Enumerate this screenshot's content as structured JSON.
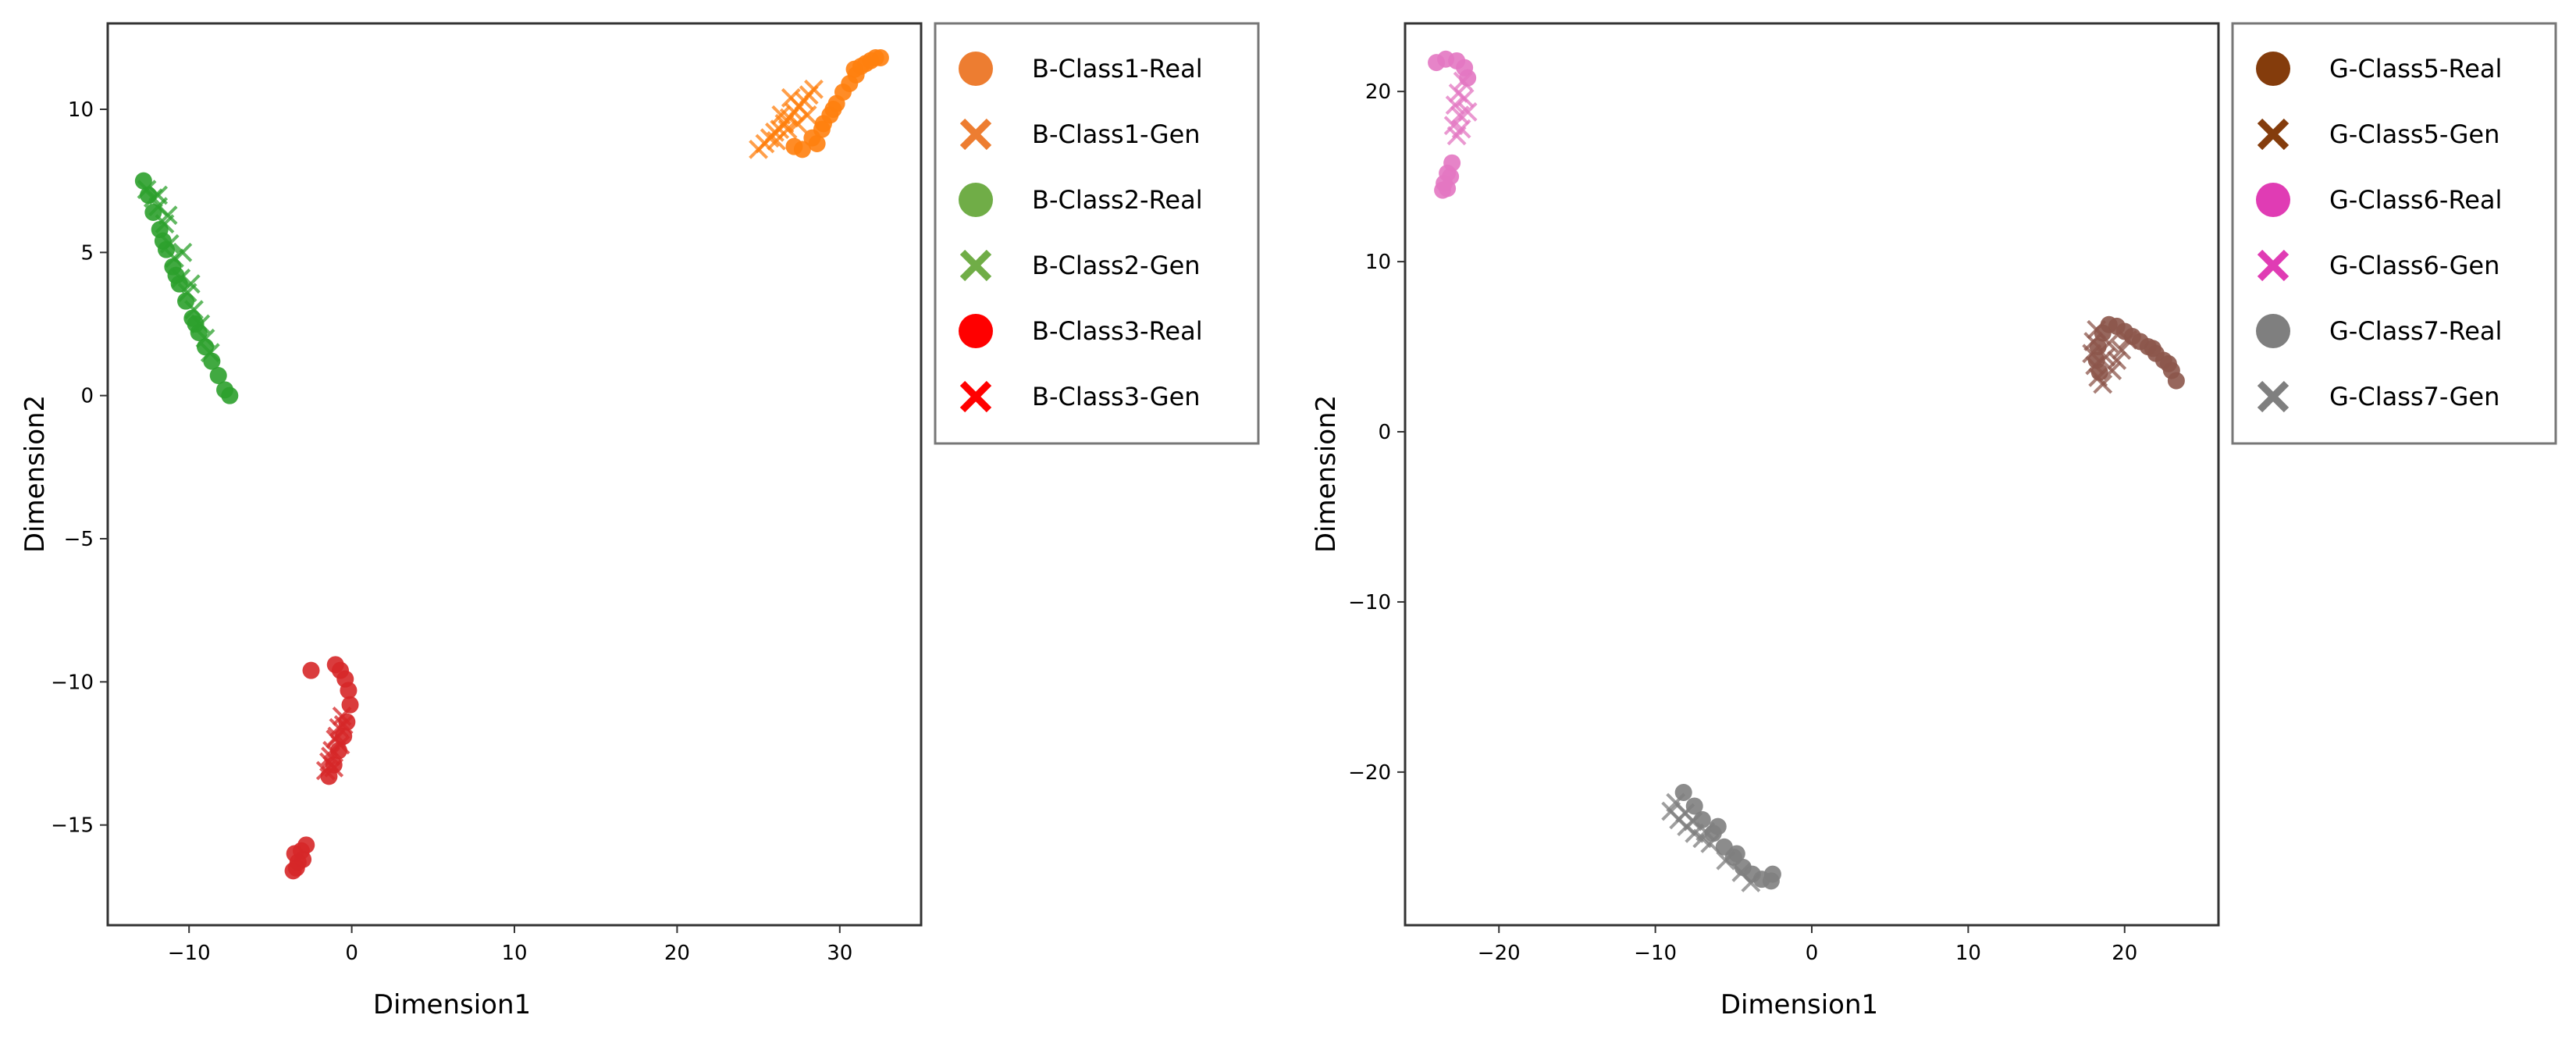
{
  "chart_data": [
    {
      "type": "scatter",
      "xlabel": "Dimension1",
      "ylabel": "Dimension2",
      "xlim": [
        -15,
        35
      ],
      "ylim": [
        -18.5,
        13
      ],
      "xticks": [
        -10,
        0,
        10,
        20,
        30
      ],
      "yticks": [
        10,
        5,
        0,
        -5,
        -10,
        -15
      ],
      "xtick_labels": [
        "−10",
        "0",
        "10",
        "20",
        "30"
      ],
      "ytick_labels": [
        "10",
        "5",
        "0",
        "−5",
        "−10",
        "−15"
      ],
      "legend_position": "outside-right",
      "series": [
        {
          "name": "B-Class1-Real",
          "marker": "circle",
          "color": "#ff7f0e",
          "legend_color": "#ed7d31",
          "points": [
            [
              27.2,
              8.7
            ],
            [
              27.7,
              8.6
            ],
            [
              28.3,
              9.0
            ],
            [
              28.6,
              8.8
            ],
            [
              29.0,
              9.5
            ],
            [
              29.4,
              9.8
            ],
            [
              29.8,
              10.2
            ],
            [
              30.2,
              10.6
            ],
            [
              30.6,
              10.9
            ],
            [
              31.0,
              11.2
            ],
            [
              31.3,
              11.5
            ],
            [
              31.6,
              11.6
            ],
            [
              31.9,
              11.7
            ],
            [
              32.2,
              11.8
            ],
            [
              32.5,
              11.8
            ],
            [
              30.9,
              11.4
            ],
            [
              29.6,
              10.0
            ],
            [
              28.9,
              9.3
            ]
          ]
        },
        {
          "name": "B-Class1-Gen",
          "marker": "x",
          "color": "#ff7f0e",
          "legend_color": "#ed7d31",
          "points": [
            [
              25.0,
              8.6
            ],
            [
              25.4,
              8.8
            ],
            [
              25.7,
              9.0
            ],
            [
              26.0,
              9.2
            ],
            [
              26.3,
              9.3
            ],
            [
              26.6,
              9.5
            ],
            [
              26.9,
              9.7
            ],
            [
              27.2,
              9.9
            ],
            [
              27.5,
              10.1
            ],
            [
              27.8,
              10.3
            ],
            [
              28.1,
              10.5
            ],
            [
              28.4,
              10.7
            ],
            [
              26.1,
              8.9
            ],
            [
              26.8,
              9.3
            ],
            [
              27.4,
              9.5
            ],
            [
              28.0,
              9.8
            ],
            [
              27.0,
              10.4
            ],
            [
              26.4,
              9.8
            ]
          ]
        },
        {
          "name": "B-Class2-Real",
          "marker": "circle",
          "color": "#2ca02c",
          "legend_color": "#70ad47",
          "points": [
            [
              -12.8,
              7.5
            ],
            [
              -12.5,
              7.0
            ],
            [
              -12.2,
              6.4
            ],
            [
              -11.8,
              5.8
            ],
            [
              -11.4,
              5.1
            ],
            [
              -11.0,
              4.5
            ],
            [
              -10.6,
              3.9
            ],
            [
              -10.2,
              3.3
            ],
            [
              -9.8,
              2.7
            ],
            [
              -9.4,
              2.2
            ],
            [
              -9.0,
              1.7
            ],
            [
              -8.6,
              1.2
            ],
            [
              -8.2,
              0.7
            ],
            [
              -7.8,
              0.2
            ],
            [
              -7.5,
              0.0
            ],
            [
              -11.6,
              5.4
            ],
            [
              -10.8,
              4.2
            ],
            [
              -9.6,
              2.5
            ]
          ]
        },
        {
          "name": "B-Class2-Gen",
          "marker": "x",
          "color": "#2ca02c",
          "legend_color": "#70ad47",
          "points": [
            [
              -12.6,
              7.2
            ],
            [
              -12.2,
              6.9
            ],
            [
              -11.9,
              6.6
            ],
            [
              -11.5,
              6.0
            ],
            [
              -11.2,
              5.3
            ],
            [
              -10.9,
              4.8
            ],
            [
              -10.5,
              4.1
            ],
            [
              -10.1,
              3.6
            ],
            [
              -9.7,
              3.0
            ],
            [
              -9.3,
              2.5
            ],
            [
              -9.0,
              2.0
            ],
            [
              -8.7,
              1.5
            ],
            [
              -11.9,
              7.0
            ],
            [
              -11.3,
              6.3
            ],
            [
              -10.4,
              5.0
            ],
            [
              -9.9,
              3.9
            ]
          ]
        },
        {
          "name": "B-Class3-Real",
          "marker": "circle",
          "color": "#d62728",
          "legend_color": "#ff0000",
          "points": [
            [
              -2.5,
              -9.6
            ],
            [
              -1.0,
              -9.4
            ],
            [
              -0.7,
              -9.6
            ],
            [
              -0.4,
              -9.9
            ],
            [
              -0.2,
              -10.3
            ],
            [
              -0.1,
              -10.8
            ],
            [
              -0.3,
              -11.4
            ],
            [
              -0.5,
              -11.9
            ],
            [
              -0.8,
              -12.4
            ],
            [
              -1.1,
              -12.9
            ],
            [
              -1.4,
              -13.3
            ],
            [
              -3.5,
              -16.0
            ],
            [
              -3.3,
              -16.3
            ],
            [
              -3.6,
              -16.6
            ],
            [
              -3.1,
              -15.9
            ],
            [
              -2.8,
              -15.7
            ],
            [
              -3.4,
              -16.5
            ],
            [
              -3.0,
              -16.2
            ]
          ]
        },
        {
          "name": "B-Class3-Gen",
          "marker": "x",
          "color": "#d62728",
          "legend_color": "#ff0000",
          "points": [
            [
              -0.6,
              -11.2
            ],
            [
              -0.8,
              -11.6
            ],
            [
              -1.0,
              -12.0
            ],
            [
              -1.2,
              -12.4
            ],
            [
              -1.4,
              -12.8
            ],
            [
              -1.6,
              -13.1
            ],
            [
              -0.9,
              -11.9
            ],
            [
              -0.5,
              -11.5
            ],
            [
              -1.3,
              -12.6
            ],
            [
              -0.7,
              -12.2
            ],
            [
              -1.1,
              -13.0
            ]
          ]
        }
      ],
      "legend_markers": [
        "circle",
        "x",
        "circle",
        "x",
        "circle",
        "x"
      ]
    },
    {
      "type": "scatter",
      "xlabel": "Dimension1",
      "ylabel": "Dimension2",
      "xlim": [
        -26,
        26
      ],
      "ylim": [
        -29,
        24
      ],
      "xticks": [
        -20,
        -10,
        0,
        10,
        20
      ],
      "yticks": [
        20,
        10,
        0,
        -10,
        -20
      ],
      "xtick_labels": [
        "−20",
        "−10",
        "0",
        "10",
        "20"
      ],
      "ytick_labels": [
        "20",
        "10",
        "0",
        "−10",
        "−20"
      ],
      "legend_position": "outside-right",
      "series": [
        {
          "name": "G-Class5-Real",
          "marker": "circle",
          "color": "#8c564b",
          "legend_color": "#843c0c",
          "points": [
            [
              19.0,
              6.3
            ],
            [
              19.5,
              6.2
            ],
            [
              20.0,
              5.9
            ],
            [
              20.5,
              5.6
            ],
            [
              21.0,
              5.3
            ],
            [
              21.5,
              5.0
            ],
            [
              22.0,
              4.6
            ],
            [
              22.5,
              4.2
            ],
            [
              23.0,
              3.6
            ],
            [
              23.3,
              3.0
            ],
            [
              18.6,
              5.8
            ],
            [
              18.3,
              5.0
            ],
            [
              18.2,
              4.2
            ],
            [
              18.4,
              3.5
            ],
            [
              21.8,
              4.9
            ],
            [
              22.8,
              4.0
            ]
          ]
        },
        {
          "name": "G-Class5-Gen",
          "marker": "x",
          "color": "#8c564b",
          "legend_color": "#843c0c",
          "points": [
            [
              18.2,
              6.0
            ],
            [
              18.0,
              5.3
            ],
            [
              17.9,
              4.6
            ],
            [
              18.1,
              3.9
            ],
            [
              18.3,
              3.2
            ],
            [
              18.6,
              2.8
            ],
            [
              19.2,
              3.6
            ],
            [
              19.5,
              4.2
            ],
            [
              19.8,
              4.8
            ],
            [
              20.2,
              5.4
            ],
            [
              18.8,
              4.4
            ],
            [
              19.0,
              5.2
            ]
          ]
        },
        {
          "name": "G-Class6-Real",
          "marker": "circle",
          "color": "#e377c2",
          "legend_color": "#e03cb4",
          "points": [
            [
              -24.0,
              21.7
            ],
            [
              -23.4,
              21.9
            ],
            [
              -22.7,
              21.8
            ],
            [
              -22.2,
              21.4
            ],
            [
              -22.0,
              20.8
            ],
            [
              -23.0,
              15.8
            ],
            [
              -23.3,
              15.2
            ],
            [
              -23.5,
              14.6
            ],
            [
              -23.6,
              14.2
            ],
            [
              -23.3,
              14.3
            ],
            [
              -23.1,
              15.0
            ]
          ]
        },
        {
          "name": "G-Class6-Gen",
          "marker": "x",
          "color": "#e377c2",
          "legend_color": "#e03cb4",
          "points": [
            [
              -22.3,
              20.6
            ],
            [
              -22.6,
              19.9
            ],
            [
              -22.8,
              19.2
            ],
            [
              -22.5,
              18.6
            ],
            [
              -22.9,
              18.0
            ],
            [
              -22.7,
              17.4
            ],
            [
              -22.2,
              19.6
            ],
            [
              -22.0,
              18.8
            ],
            [
              -22.4,
              17.8
            ]
          ]
        },
        {
          "name": "G-Class7-Real",
          "marker": "circle",
          "color": "#7f7f7f",
          "legend_color": "#7f7f7f",
          "points": [
            [
              -8.2,
              -21.2
            ],
            [
              -7.5,
              -22.0
            ],
            [
              -7.0,
              -22.8
            ],
            [
              -6.3,
              -23.6
            ],
            [
              -5.6,
              -24.4
            ],
            [
              -5.0,
              -25.0
            ],
            [
              -4.4,
              -25.6
            ],
            [
              -3.8,
              -26.0
            ],
            [
              -3.2,
              -26.3
            ],
            [
              -2.6,
              -26.4
            ],
            [
              -2.5,
              -26.0
            ],
            [
              -6.0,
              -23.2
            ],
            [
              -4.8,
              -24.8
            ]
          ]
        },
        {
          "name": "G-Class7-Gen",
          "marker": "x",
          "color": "#7f7f7f",
          "legend_color": "#7f7f7f",
          "points": [
            [
              -9.0,
              -22.3
            ],
            [
              -8.5,
              -22.8
            ],
            [
              -8.0,
              -23.2
            ],
            [
              -7.5,
              -23.6
            ],
            [
              -7.0,
              -23.9
            ],
            [
              -6.5,
              -24.2
            ],
            [
              -8.7,
              -21.8
            ],
            [
              -8.1,
              -22.4
            ],
            [
              -7.6,
              -22.9
            ],
            [
              -6.8,
              -23.5
            ],
            [
              -5.5,
              -25.2
            ],
            [
              -4.5,
              -25.9
            ],
            [
              -3.9,
              -26.5
            ]
          ]
        }
      ],
      "legend_markers": [
        "circle",
        "x",
        "circle",
        "x",
        "circle",
        "x"
      ]
    }
  ]
}
